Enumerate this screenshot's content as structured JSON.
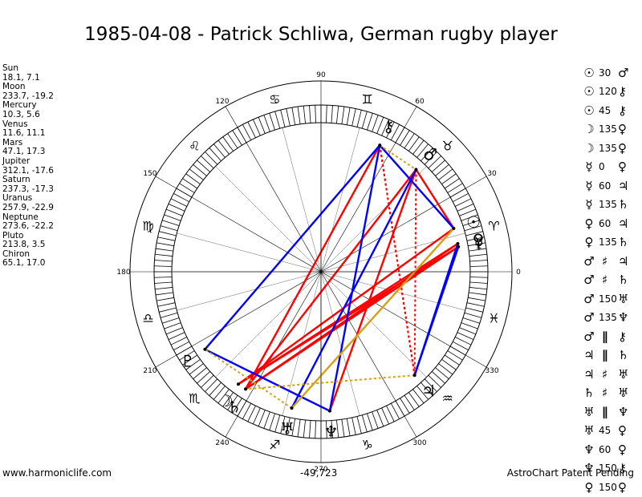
{
  "title": "1985-04-08 - Patrick Schliwa, German rugby player",
  "planets": [
    {
      "name": "Sun",
      "coords": "18.1, 7.1",
      "glyph": "☉",
      "longitude": 18.1
    },
    {
      "name": "Moon",
      "coords": "233.7, -19.2",
      "glyph": "☽",
      "longitude": 233.7
    },
    {
      "name": "Mercury",
      "coords": "10.3, 5.6",
      "glyph": "☿",
      "longitude": 10.3
    },
    {
      "name": "Venus",
      "coords": "11.6, 11.1",
      "glyph": "♀",
      "longitude": 11.6
    },
    {
      "name": "Mars",
      "coords": "47.1, 17.3",
      "glyph": "♂",
      "longitude": 47.1
    },
    {
      "name": "Jupiter",
      "coords": "312.1, -17.6",
      "glyph": "♃",
      "longitude": 312.1
    },
    {
      "name": "Saturn",
      "coords": "237.3, -17.3",
      "glyph": "♄",
      "longitude": 237.3
    },
    {
      "name": "Uranus",
      "coords": "257.9, -22.9",
      "glyph": "♅",
      "longitude": 257.9
    },
    {
      "name": "Neptune",
      "coords": "273.6, -22.2",
      "glyph": "♆",
      "longitude": 273.6
    },
    {
      "name": "Pluto",
      "coords": "213.8, 3.5",
      "glyph": "♇",
      "longitude": 213.8
    },
    {
      "name": "Chiron",
      "coords": "65.1, 17.0",
      "glyph": "⚷",
      "longitude": 65.1
    }
  ],
  "aspects": [
    {
      "p1": "☉",
      "aspect": "30",
      "p2": "♂"
    },
    {
      "p1": "☉",
      "aspect": "120",
      "p2": "⚷"
    },
    {
      "p1": "☉",
      "aspect": "45",
      "p2": "⚷"
    },
    {
      "p1": "☽",
      "aspect": "135",
      "p2": "♀"
    },
    {
      "p1": "☽",
      "aspect": "135",
      "p2": "♀"
    },
    {
      "p1": "☿",
      "aspect": "0",
      "p2": "♀"
    },
    {
      "p1": "☿",
      "aspect": "60",
      "p2": "♃"
    },
    {
      "p1": "☿",
      "aspect": "135",
      "p2": "♄"
    },
    {
      "p1": "♀",
      "aspect": "60",
      "p2": "♃"
    },
    {
      "p1": "♀",
      "aspect": "135",
      "p2": "♄"
    },
    {
      "p1": "♂",
      "aspect": "♯",
      "p2": "♃"
    },
    {
      "p1": "♂",
      "aspect": "♯",
      "p2": "♄"
    },
    {
      "p1": "♂",
      "aspect": "150",
      "p2": "♅"
    },
    {
      "p1": "♂",
      "aspect": "135",
      "p2": "♆"
    },
    {
      "p1": "♂",
      "aspect": "∥",
      "p2": "⚷"
    },
    {
      "p1": "♃",
      "aspect": "∥",
      "p2": "♄"
    },
    {
      "p1": "♃",
      "aspect": "♯",
      "p2": "♅"
    },
    {
      "p1": "♄",
      "aspect": "♯",
      "p2": "♅"
    },
    {
      "p1": "♅",
      "aspect": "∥",
      "p2": "♆"
    },
    {
      "p1": "♅",
      "aspect": "45",
      "p2": "♀"
    },
    {
      "p1": "♆",
      "aspect": "60",
      "p2": "♀"
    },
    {
      "p1": "♆",
      "aspect": "150",
      "p2": "⚷"
    },
    {
      "p1": "♀",
      "aspect": "150",
      "p2": "♀"
    }
  ],
  "wheel": {
    "degree_labels": [
      "0",
      "30",
      "60",
      "90",
      "120",
      "150",
      "180",
      "210",
      "240",
      "270",
      "300",
      "330"
    ],
    "zodiac_glyphs": [
      "♈",
      "♉",
      "♊",
      "♋",
      "♌",
      "♍",
      "♎",
      "♏",
      "♐",
      "♑",
      "♒",
      "♓"
    ],
    "offset_readout": "-49,723",
    "aspect_colors": {
      "hard": "#ff0000",
      "soft": "#0000ff",
      "minor": "#d4a017"
    }
  },
  "aspect_lines": [
    {
      "from": 18.1,
      "to": 233.7,
      "kind": "hard",
      "style": "solid"
    },
    {
      "from": 10.3,
      "to": 237.3,
      "kind": "hard",
      "style": "solid"
    },
    {
      "from": 11.6,
      "to": 237.3,
      "kind": "hard",
      "style": "solid"
    },
    {
      "from": 10.3,
      "to": 233.7,
      "kind": "hard",
      "style": "solid"
    },
    {
      "from": 11.6,
      "to": 233.7,
      "kind": "hard",
      "style": "solid"
    },
    {
      "from": 47.1,
      "to": 237.3,
      "kind": "hard",
      "style": "solid"
    },
    {
      "from": 47.1,
      "to": 18.1,
      "kind": "hard",
      "style": "solid"
    },
    {
      "from": 65.1,
      "to": 312.1,
      "kind": "hard",
      "style": "dotted"
    },
    {
      "from": 65.1,
      "to": 213.8,
      "kind": "hard",
      "style": "dotted"
    },
    {
      "from": 47.1,
      "to": 273.6,
      "kind": "hard",
      "style": "solid"
    },
    {
      "from": 47.1,
      "to": 312.1,
      "kind": "hard",
      "style": "dotted"
    },
    {
      "from": 65.1,
      "to": 237.3,
      "kind": "hard",
      "style": "solid"
    },
    {
      "from": 65.1,
      "to": 312.1,
      "kind": "hard",
      "style": "dotted"
    },
    {
      "from": 18.1,
      "to": 65.1,
      "kind": "soft",
      "style": "solid"
    },
    {
      "from": 65.1,
      "to": 213.8,
      "kind": "soft",
      "style": "solid"
    },
    {
      "from": 47.1,
      "to": 257.9,
      "kind": "soft",
      "style": "solid"
    },
    {
      "from": 10.3,
      "to": 312.1,
      "kind": "soft",
      "style": "solid"
    },
    {
      "from": 11.6,
      "to": 312.1,
      "kind": "soft",
      "style": "solid"
    },
    {
      "from": 273.6,
      "to": 213.8,
      "kind": "soft",
      "style": "solid"
    },
    {
      "from": 65.1,
      "to": 273.6,
      "kind": "soft",
      "style": "solid"
    },
    {
      "from": 18.1,
      "to": 257.9,
      "kind": "minor",
      "style": "solid"
    },
    {
      "from": 65.1,
      "to": 47.1,
      "kind": "minor",
      "style": "dotted"
    },
    {
      "from": 257.9,
      "to": 213.8,
      "kind": "minor",
      "style": "dotted"
    },
    {
      "from": 312.1,
      "to": 237.3,
      "kind": "minor",
      "style": "dotted"
    }
  ],
  "footer": {
    "left": "www.harmoniclife.com",
    "right": "AstroChart Patent Pending"
  }
}
